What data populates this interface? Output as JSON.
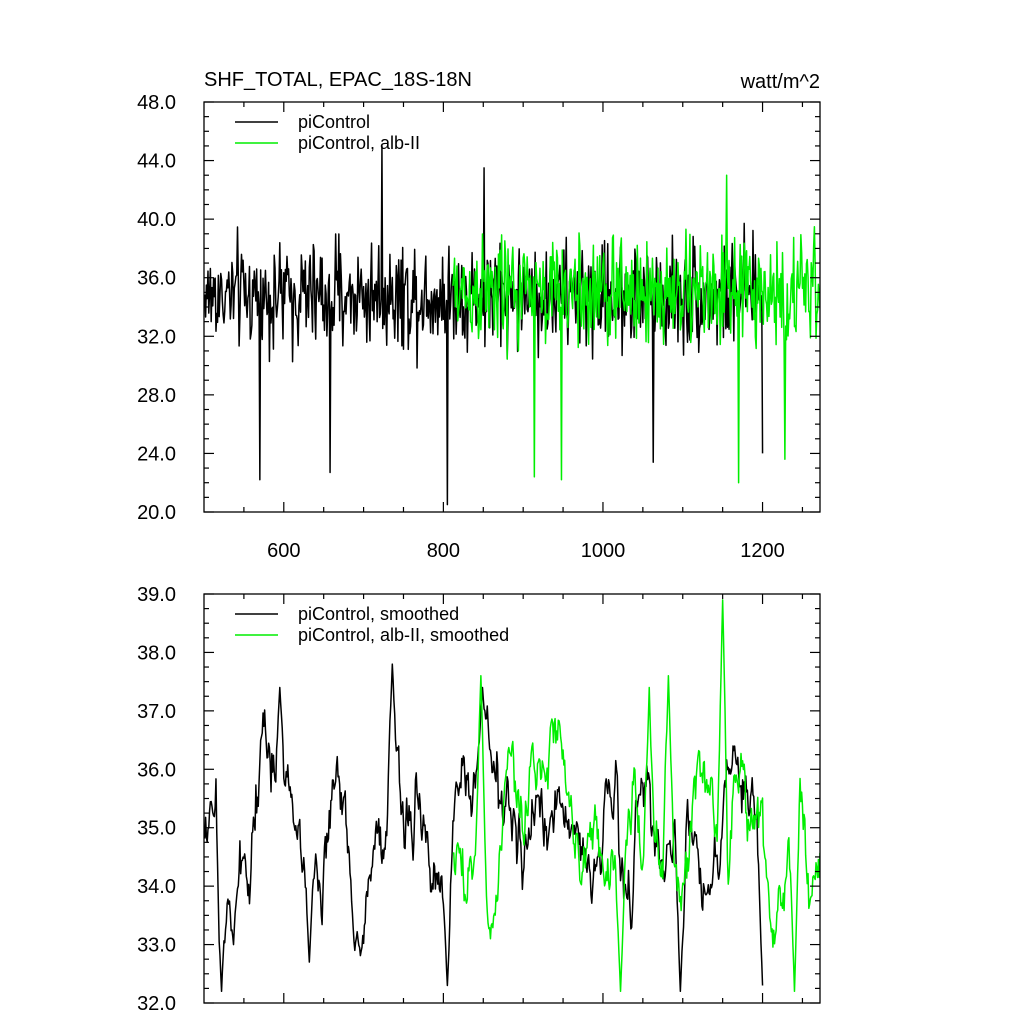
{
  "chart_data": [
    {
      "type": "line",
      "title": "SHF_TOTAL, EPAC_18S-18N",
      "units": "watt/m^2",
      "xlim": [
        500,
        1272
      ],
      "ylim": [
        20,
        48
      ],
      "xticks": [
        600,
        800,
        1000,
        1200
      ],
      "xtick_labels": [
        "600",
        "800",
        "1000",
        "1200"
      ],
      "yticks": [
        20,
        24,
        28,
        32,
        36,
        40,
        44,
        48
      ],
      "ytick_labels": [
        "20.0",
        "24.0",
        "28.0",
        "32.0",
        "36.0",
        "40.0",
        "44.0",
        "48.0"
      ],
      "grid": false,
      "legend": "top-left",
      "series": [
        {
          "name": "piControl",
          "color": "#000000",
          "x_start": 501,
          "x_end": 1200,
          "mean": 34.8,
          "spread": 3.4,
          "points": [
            {
              "x": 570,
              "y": 22.2
            },
            {
              "x": 658,
              "y": 22.7
            },
            {
              "x": 723,
              "y": 45.0
            },
            {
              "x": 805,
              "y": 20.5
            },
            {
              "x": 851,
              "y": 43.5
            },
            {
              "x": 1063,
              "y": 23.4
            },
            {
              "x": 1200,
              "y": 24.0
            }
          ]
        },
        {
          "name": "piControl, alb-II",
          "color": "#00ee00",
          "x_start": 812,
          "x_end": 1272,
          "mean": 35.0,
          "spread": 3.6,
          "points": [
            {
              "x": 914,
              "y": 22.4
            },
            {
              "x": 948,
              "y": 22.2
            },
            {
              "x": 1155,
              "y": 43.0
            },
            {
              "x": 1170,
              "y": 22.0
            },
            {
              "x": 1228,
              "y": 23.6
            }
          ]
        }
      ]
    },
    {
      "type": "line",
      "title": "",
      "xlim": [
        500,
        1272
      ],
      "ylim": [
        32,
        39
      ],
      "xticks": [
        600,
        800,
        1000,
        1200
      ],
      "xtick_labels": [],
      "yticks": [
        32,
        33,
        34,
        35,
        36,
        37,
        38,
        39
      ],
      "ytick_labels": [
        "32.0",
        "33.0",
        "34.0",
        "35.0",
        "36.0",
        "37.0",
        "38.0",
        "39.0"
      ],
      "grid": false,
      "legend": "top-left",
      "series": [
        {
          "name": "piControl, smoothed",
          "color": "#000000",
          "x_start": 501,
          "x_end": 1200,
          "mean": 34.9,
          "spread": 0.75,
          "points": [
            {
              "x": 522,
              "y": 32.2
            },
            {
              "x": 537,
              "y": 33.0
            },
            {
              "x": 595,
              "y": 37.4
            },
            {
              "x": 632,
              "y": 32.7
            },
            {
              "x": 689,
              "y": 32.9
            },
            {
              "x": 736,
              "y": 37.8
            },
            {
              "x": 805,
              "y": 32.3
            },
            {
              "x": 849,
              "y": 37.4
            },
            {
              "x": 1097,
              "y": 32.2
            },
            {
              "x": 1200,
              "y": 32.3
            }
          ]
        },
        {
          "name": "piControl, alb-II, smoothed",
          "color": "#00ee00",
          "x_start": 812,
          "x_end": 1272,
          "mean": 35.0,
          "spread": 0.85,
          "points": [
            {
              "x": 847,
              "y": 37.6
            },
            {
              "x": 1022,
              "y": 32.2
            },
            {
              "x": 1058,
              "y": 37.4
            },
            {
              "x": 1082,
              "y": 37.6
            },
            {
              "x": 1150,
              "y": 38.9
            },
            {
              "x": 1240,
              "y": 32.2
            }
          ]
        }
      ]
    }
  ]
}
